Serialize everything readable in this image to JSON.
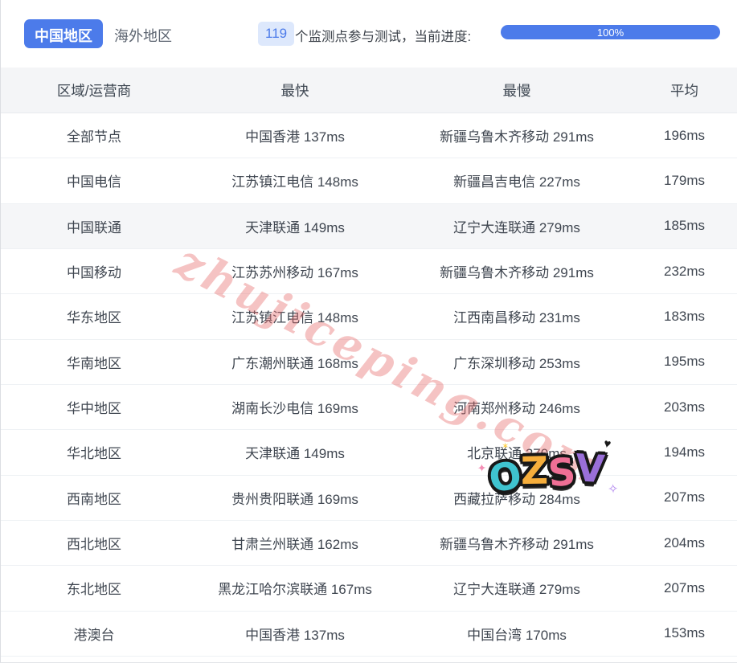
{
  "tabs": {
    "china": "中国地区",
    "overseas": "海外地区"
  },
  "status": {
    "count": "119",
    "text": "个监测点参与测试，当前进度:",
    "progress": "100%"
  },
  "table": {
    "headers": [
      "区域/运营商",
      "最快",
      "最慢",
      "平均"
    ],
    "rows": [
      {
        "region": "全部节点",
        "fastest": "中国香港 137ms",
        "slowest": "新疆乌鲁木齐移动 291ms",
        "avg": "196ms",
        "highlight": false
      },
      {
        "region": "中国电信",
        "fastest": "江苏镇江电信 148ms",
        "slowest": "新疆昌吉电信 227ms",
        "avg": "179ms",
        "highlight": false
      },
      {
        "region": "中国联通",
        "fastest": "天津联通 149ms",
        "slowest": "辽宁大连联通 279ms",
        "avg": "185ms",
        "highlight": true
      },
      {
        "region": "中国移动",
        "fastest": "江苏苏州移动 167ms",
        "slowest": "新疆乌鲁木齐移动 291ms",
        "avg": "232ms",
        "highlight": false
      },
      {
        "region": "华东地区",
        "fastest": "江苏镇江电信 148ms",
        "slowest": "江西南昌移动 231ms",
        "avg": "183ms",
        "highlight": false
      },
      {
        "region": "华南地区",
        "fastest": "广东潮州联通 168ms",
        "slowest": "广东深圳移动 253ms",
        "avg": "195ms",
        "highlight": false
      },
      {
        "region": "华中地区",
        "fastest": "湖南长沙电信 169ms",
        "slowest": "河南郑州移动 246ms",
        "avg": "203ms",
        "highlight": false
      },
      {
        "region": "华北地区",
        "fastest": "天津联通 149ms",
        "slowest": "北京联通 270ms",
        "avg": "194ms",
        "highlight": false
      },
      {
        "region": "西南地区",
        "fastest": "贵州贵阳联通 169ms",
        "slowest": "西藏拉萨移动 284ms",
        "avg": "207ms",
        "highlight": false
      },
      {
        "region": "西北地区",
        "fastest": "甘肃兰州联通 162ms",
        "slowest": "新疆乌鲁木齐移动 291ms",
        "avg": "204ms",
        "highlight": false
      },
      {
        "region": "东北地区",
        "fastest": "黑龙江哈尔滨联通 167ms",
        "slowest": "辽宁大连联通 279ms",
        "avg": "207ms",
        "highlight": false
      },
      {
        "region": "港澳台",
        "fastest": "中国香港 137ms",
        "slowest": "中国台湾 170ms",
        "avg": "153ms",
        "highlight": false
      }
    ]
  },
  "watermark": {
    "text": "zhujiceping.com"
  },
  "sticker": {
    "letters": [
      "O",
      "Z",
      "S",
      "V"
    ]
  },
  "colors": {
    "accent_blue": "#4c7bea",
    "badge_bg": "#dde8fc",
    "header_bg": "#f4f5f7",
    "row_divider": "#eef1f4",
    "highlight_row_bg": "#f5f6f8",
    "watermark_pink": "#e56868",
    "sticker_o": "#3fc3cf",
    "sticker_z": "#f6ae3c",
    "sticker_s": "#ef6f95",
    "sticker_v": "#9a6fd8"
  }
}
